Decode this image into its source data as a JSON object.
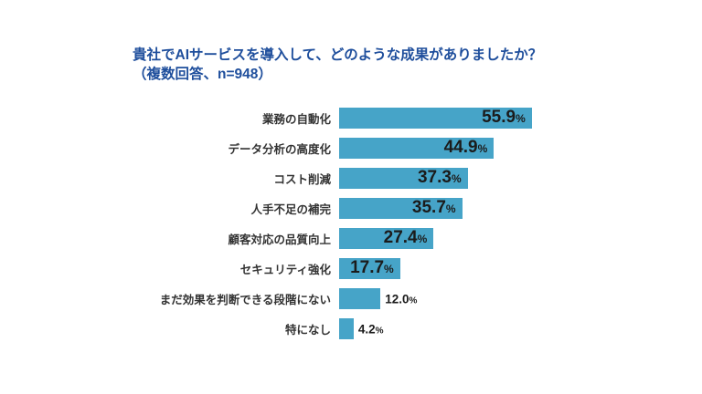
{
  "title": {
    "line1": "貴社でAIサービスを導入して、どのような成果がありましたか？",
    "line2": "（複数回答、n=948）"
  },
  "chart_data": {
    "type": "bar",
    "orientation": "horizontal",
    "title": "貴社でAIサービスを導入して、どのような成果がありましたか？（複数回答、n=948）",
    "sample_note": "複数回答、n=948",
    "categories": [
      "業務の自動化",
      "データ分析の高度化",
      "コスト削減",
      "人手不足の補完",
      "顧客対応の品質向上",
      "セキュリティ強化",
      "まだ効果を判断できる段階にない",
      "特になし"
    ],
    "values": [
      55.9,
      44.9,
      37.3,
      35.7,
      27.4,
      17.7,
      12.0,
      4.2
    ],
    "value_labels": [
      "55.9",
      "44.9",
      "37.3",
      "35.7",
      "27.4",
      "17.7",
      "12.0",
      "4.2"
    ],
    "unit": "%",
    "xlim": [
      0,
      60
    ],
    "grid": false,
    "legend": "none",
    "colors": {
      "bar": "#46a4c8",
      "title_text": "#1e4e9c",
      "category_text": "#333333",
      "value_text": "#1b1b1b",
      "background": "#ffffff"
    }
  }
}
